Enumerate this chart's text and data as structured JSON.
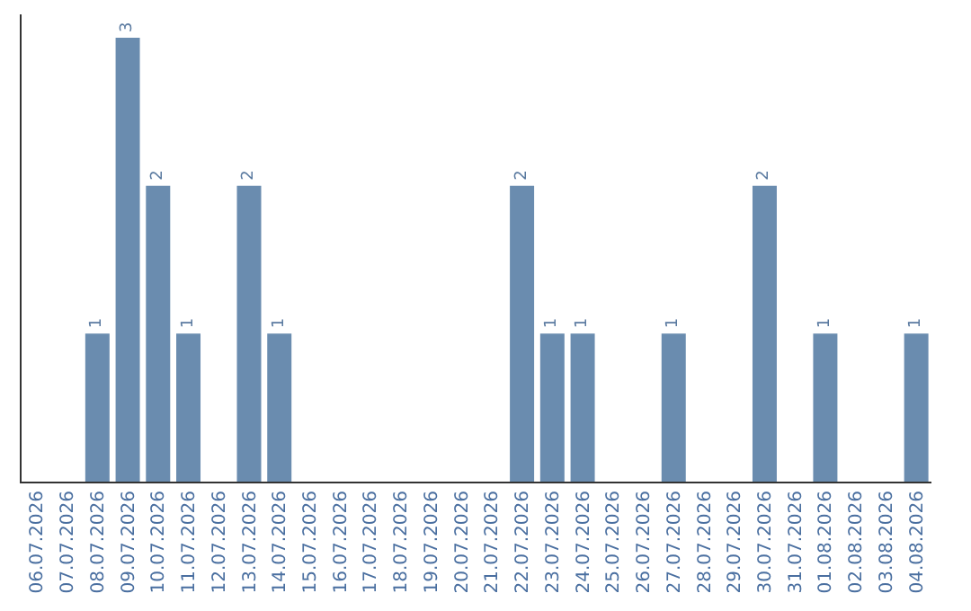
{
  "chart_data": {
    "type": "bar",
    "categories": [
      "06.07.2026",
      "07.07.2026",
      "08.07.2026",
      "09.07.2026",
      "10.07.2026",
      "11.07.2026",
      "12.07.2026",
      "13.07.2026",
      "14.07.2026",
      "15.07.2026",
      "16.07.2026",
      "17.07.2026",
      "18.07.2026",
      "19.07.2026",
      "20.07.2026",
      "21.07.2026",
      "22.07.2026",
      "23.07.2026",
      "24.07.2026",
      "25.07.2026",
      "26.07.2026",
      "27.07.2026",
      "28.07.2026",
      "29.07.2026",
      "30.07.2026",
      "31.07.2026",
      "01.08.2026",
      "02.08.2026",
      "03.08.2026",
      "04.08.2026"
    ],
    "values": [
      0,
      0,
      1,
      3,
      2,
      1,
      0,
      2,
      1,
      0,
      0,
      0,
      0,
      0,
      0,
      0,
      2,
      1,
      1,
      0,
      0,
      1,
      0,
      0,
      2,
      0,
      1,
      0,
      0,
      1
    ],
    "value_labels": [
      null,
      null,
      "1",
      "3",
      "2",
      "1",
      null,
      "2",
      "1",
      null,
      null,
      null,
      null,
      null,
      null,
      null,
      "2",
      "1",
      "1",
      null,
      null,
      "1",
      null,
      null,
      "2",
      null,
      "1",
      null,
      null,
      "1"
    ],
    "color": "#6a8caf",
    "tick_labels": "x"
  }
}
